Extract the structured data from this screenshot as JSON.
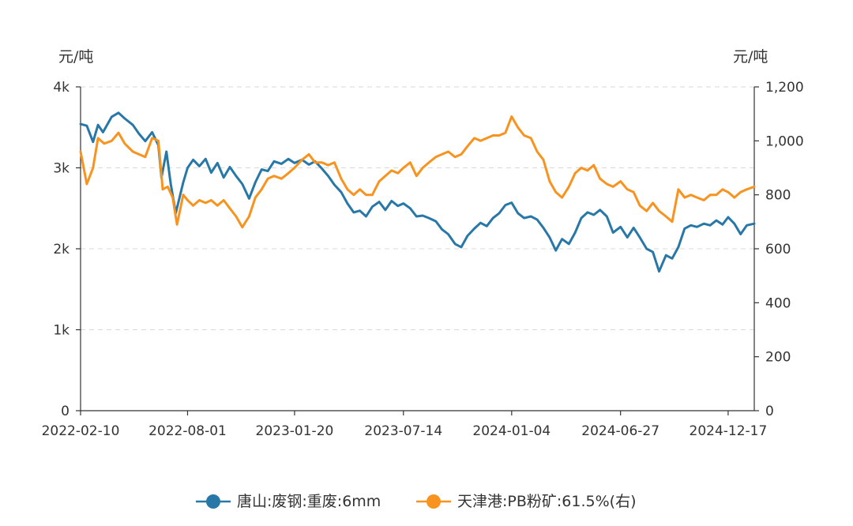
{
  "chart_data": {
    "type": "line",
    "title": "",
    "left_axis": {
      "unit": "元/吨",
      "ylim": [
        0,
        4000
      ],
      "ticks": [
        0,
        1000,
        2000,
        3000,
        4000
      ],
      "tick_labels": [
        "0",
        "1k",
        "2k",
        "3k",
        "4k"
      ]
    },
    "right_axis": {
      "unit": "元/吨",
      "ylim": [
        0,
        1200
      ],
      "ticks": [
        0,
        200,
        400,
        600,
        800,
        1000,
        1200
      ],
      "tick_labels": [
        "0",
        "200",
        "400",
        "600",
        "800",
        "1,000",
        "1,200"
      ]
    },
    "x_ticks": [
      "2022-02-10",
      "2022-08-01",
      "2023-01-20",
      "2023-07-14",
      "2024-01-04",
      "2024-06-27",
      "2024-12-17"
    ],
    "x_range": [
      "2022-02-10",
      "2025-01-28"
    ],
    "grid": true,
    "legend_position": "bottom",
    "series": [
      {
        "name": "唐山:废钢:重废:6mm",
        "axis": "left",
        "color": "#2878a7",
        "points": [
          [
            "2022-02-10",
            3540
          ],
          [
            "2022-02-20",
            3520
          ],
          [
            "2022-03-02",
            3320
          ],
          [
            "2022-03-10",
            3530
          ],
          [
            "2022-03-18",
            3440
          ],
          [
            "2022-04-01",
            3630
          ],
          [
            "2022-04-12",
            3680
          ],
          [
            "2022-04-22",
            3610
          ],
          [
            "2022-05-05",
            3530
          ],
          [
            "2022-05-15",
            3420
          ],
          [
            "2022-05-25",
            3330
          ],
          [
            "2022-06-05",
            3440
          ],
          [
            "2022-06-15",
            3280
          ],
          [
            "2022-06-20",
            2880
          ],
          [
            "2022-06-28",
            3200
          ],
          [
            "2022-07-05",
            2800
          ],
          [
            "2022-07-13",
            2440
          ],
          [
            "2022-07-25",
            2820
          ],
          [
            "2022-08-01",
            3000
          ],
          [
            "2022-08-10",
            3100
          ],
          [
            "2022-08-20",
            3020
          ],
          [
            "2022-08-30",
            3110
          ],
          [
            "2022-09-08",
            2940
          ],
          [
            "2022-09-18",
            3060
          ],
          [
            "2022-09-28",
            2880
          ],
          [
            "2022-10-08",
            3010
          ],
          [
            "2022-10-18",
            2900
          ],
          [
            "2022-10-28",
            2800
          ],
          [
            "2022-11-08",
            2620
          ],
          [
            "2022-11-18",
            2820
          ],
          [
            "2022-11-28",
            2980
          ],
          [
            "2022-12-08",
            2960
          ],
          [
            "2022-12-18",
            3080
          ],
          [
            "2022-12-30",
            3050
          ],
          [
            "2023-01-10",
            3110
          ],
          [
            "2023-01-20",
            3060
          ],
          [
            "2023-02-01",
            3100
          ],
          [
            "2023-02-12",
            3040
          ],
          [
            "2023-02-22",
            3080
          ],
          [
            "2023-03-05",
            2990
          ],
          [
            "2023-03-15",
            2900
          ],
          [
            "2023-03-25",
            2790
          ],
          [
            "2023-04-05",
            2700
          ],
          [
            "2023-04-15",
            2560
          ],
          [
            "2023-04-25",
            2450
          ],
          [
            "2023-05-05",
            2470
          ],
          [
            "2023-05-15",
            2400
          ],
          [
            "2023-05-25",
            2520
          ],
          [
            "2023-06-05",
            2580
          ],
          [
            "2023-06-15",
            2480
          ],
          [
            "2023-06-25",
            2590
          ],
          [
            "2023-07-05",
            2530
          ],
          [
            "2023-07-14",
            2560
          ],
          [
            "2023-07-25",
            2500
          ],
          [
            "2023-08-04",
            2400
          ],
          [
            "2023-08-14",
            2410
          ],
          [
            "2023-08-24",
            2380
          ],
          [
            "2023-09-04",
            2340
          ],
          [
            "2023-09-14",
            2240
          ],
          [
            "2023-09-24",
            2180
          ],
          [
            "2023-10-05",
            2060
          ],
          [
            "2023-10-15",
            2020
          ],
          [
            "2023-10-25",
            2160
          ],
          [
            "2023-11-05",
            2250
          ],
          [
            "2023-11-15",
            2320
          ],
          [
            "2023-11-25",
            2280
          ],
          [
            "2023-12-05",
            2380
          ],
          [
            "2023-12-15",
            2440
          ],
          [
            "2023-12-25",
            2540
          ],
          [
            "2024-01-04",
            2570
          ],
          [
            "2024-01-14",
            2440
          ],
          [
            "2024-01-24",
            2380
          ],
          [
            "2024-02-04",
            2400
          ],
          [
            "2024-02-14",
            2360
          ],
          [
            "2024-02-24",
            2260
          ],
          [
            "2024-03-05",
            2140
          ],
          [
            "2024-03-15",
            1980
          ],
          [
            "2024-03-25",
            2120
          ],
          [
            "2024-04-05",
            2060
          ],
          [
            "2024-04-15",
            2200
          ],
          [
            "2024-04-25",
            2380
          ],
          [
            "2024-05-05",
            2450
          ],
          [
            "2024-05-15",
            2420
          ],
          [
            "2024-05-25",
            2480
          ],
          [
            "2024-06-05",
            2400
          ],
          [
            "2024-06-15",
            2200
          ],
          [
            "2024-06-27",
            2270
          ],
          [
            "2024-07-08",
            2140
          ],
          [
            "2024-07-18",
            2260
          ],
          [
            "2024-07-28",
            2140
          ],
          [
            "2024-08-08",
            2000
          ],
          [
            "2024-08-18",
            1960
          ],
          [
            "2024-08-28",
            1720
          ],
          [
            "2024-09-08",
            1920
          ],
          [
            "2024-09-18",
            1880
          ],
          [
            "2024-09-28",
            2020
          ],
          [
            "2024-10-08",
            2250
          ],
          [
            "2024-10-18",
            2290
          ],
          [
            "2024-10-28",
            2270
          ],
          [
            "2024-11-08",
            2310
          ],
          [
            "2024-11-18",
            2290
          ],
          [
            "2024-11-28",
            2350
          ],
          [
            "2024-12-08",
            2300
          ],
          [
            "2024-12-17",
            2390
          ],
          [
            "2024-12-27",
            2310
          ],
          [
            "2025-01-06",
            2180
          ],
          [
            "2025-01-16",
            2290
          ],
          [
            "2025-01-28",
            2310
          ]
        ]
      },
      {
        "name": "天津港:PB粉矿:61.5%(右)",
        "axis": "right",
        "color": "#f7931e",
        "points": [
          [
            "2022-02-10",
            960
          ],
          [
            "2022-02-20",
            840
          ],
          [
            "2022-03-02",
            900
          ],
          [
            "2022-03-10",
            1010
          ],
          [
            "2022-03-20",
            990
          ],
          [
            "2022-04-01",
            1000
          ],
          [
            "2022-04-12",
            1030
          ],
          [
            "2022-04-22",
            990
          ],
          [
            "2022-05-05",
            960
          ],
          [
            "2022-05-15",
            950
          ],
          [
            "2022-05-25",
            940
          ],
          [
            "2022-06-05",
            1010
          ],
          [
            "2022-06-15",
            1000
          ],
          [
            "2022-06-22",
            820
          ],
          [
            "2022-06-30",
            830
          ],
          [
            "2022-07-08",
            790
          ],
          [
            "2022-07-15",
            690
          ],
          [
            "2022-07-25",
            800
          ],
          [
            "2022-08-01",
            780
          ],
          [
            "2022-08-10",
            760
          ],
          [
            "2022-08-20",
            780
          ],
          [
            "2022-08-30",
            770
          ],
          [
            "2022-09-08",
            780
          ],
          [
            "2022-09-18",
            760
          ],
          [
            "2022-09-28",
            780
          ],
          [
            "2022-10-08",
            750
          ],
          [
            "2022-10-18",
            720
          ],
          [
            "2022-10-28",
            680
          ],
          [
            "2022-11-08",
            720
          ],
          [
            "2022-11-18",
            790
          ],
          [
            "2022-11-28",
            820
          ],
          [
            "2022-12-08",
            860
          ],
          [
            "2022-12-18",
            870
          ],
          [
            "2022-12-30",
            860
          ],
          [
            "2023-01-10",
            880
          ],
          [
            "2023-01-20",
            900
          ],
          [
            "2023-02-01",
            930
          ],
          [
            "2023-02-12",
            950
          ],
          [
            "2023-02-22",
            920
          ],
          [
            "2023-03-05",
            920
          ],
          [
            "2023-03-15",
            910
          ],
          [
            "2023-03-25",
            920
          ],
          [
            "2023-04-05",
            860
          ],
          [
            "2023-04-15",
            820
          ],
          [
            "2023-04-25",
            800
          ],
          [
            "2023-05-05",
            820
          ],
          [
            "2023-05-15",
            800
          ],
          [
            "2023-05-25",
            800
          ],
          [
            "2023-06-05",
            850
          ],
          [
            "2023-06-15",
            870
          ],
          [
            "2023-06-25",
            890
          ],
          [
            "2023-07-05",
            880
          ],
          [
            "2023-07-14",
            900
          ],
          [
            "2023-07-25",
            920
          ],
          [
            "2023-08-04",
            870
          ],
          [
            "2023-08-14",
            900
          ],
          [
            "2023-08-24",
            920
          ],
          [
            "2023-09-04",
            940
          ],
          [
            "2023-09-14",
            950
          ],
          [
            "2023-09-24",
            960
          ],
          [
            "2023-10-05",
            940
          ],
          [
            "2023-10-15",
            950
          ],
          [
            "2023-10-25",
            980
          ],
          [
            "2023-11-05",
            1010
          ],
          [
            "2023-11-15",
            1000
          ],
          [
            "2023-11-25",
            1010
          ],
          [
            "2023-12-05",
            1020
          ],
          [
            "2023-12-15",
            1020
          ],
          [
            "2023-12-25",
            1030
          ],
          [
            "2024-01-04",
            1090
          ],
          [
            "2024-01-14",
            1050
          ],
          [
            "2024-01-24",
            1020
          ],
          [
            "2024-02-04",
            1010
          ],
          [
            "2024-02-14",
            960
          ],
          [
            "2024-02-24",
            930
          ],
          [
            "2024-03-05",
            850
          ],
          [
            "2024-03-15",
            810
          ],
          [
            "2024-03-25",
            790
          ],
          [
            "2024-04-05",
            830
          ],
          [
            "2024-04-15",
            880
          ],
          [
            "2024-04-25",
            900
          ],
          [
            "2024-05-05",
            890
          ],
          [
            "2024-05-15",
            910
          ],
          [
            "2024-05-25",
            860
          ],
          [
            "2024-06-05",
            840
          ],
          [
            "2024-06-15",
            830
          ],
          [
            "2024-06-27",
            850
          ],
          [
            "2024-07-08",
            820
          ],
          [
            "2024-07-18",
            810
          ],
          [
            "2024-07-28",
            760
          ],
          [
            "2024-08-08",
            740
          ],
          [
            "2024-08-18",
            770
          ],
          [
            "2024-08-28",
            740
          ],
          [
            "2024-09-08",
            720
          ],
          [
            "2024-09-18",
            700
          ],
          [
            "2024-09-28",
            820
          ],
          [
            "2024-10-08",
            790
          ],
          [
            "2024-10-18",
            800
          ],
          [
            "2024-10-28",
            790
          ],
          [
            "2024-11-08",
            780
          ],
          [
            "2024-11-18",
            800
          ],
          [
            "2024-11-28",
            800
          ],
          [
            "2024-12-08",
            820
          ],
          [
            "2024-12-17",
            810
          ],
          [
            "2024-12-27",
            790
          ],
          [
            "2025-01-06",
            810
          ],
          [
            "2025-01-16",
            820
          ],
          [
            "2025-01-28",
            830
          ]
        ]
      }
    ]
  }
}
